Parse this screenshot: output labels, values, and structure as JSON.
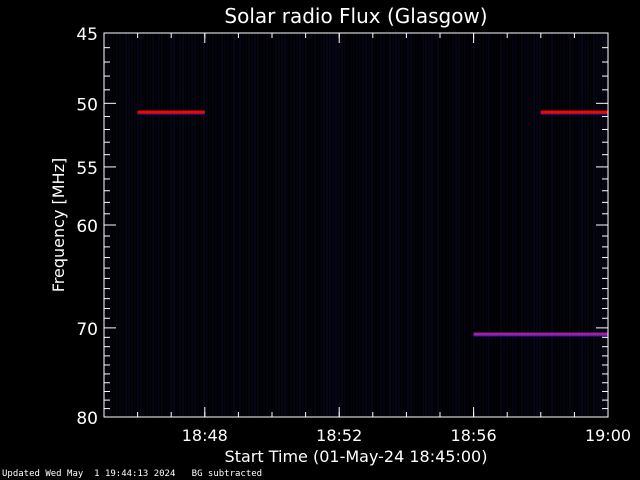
{
  "chart_data": {
    "type": "heatmap",
    "title": "Solar radio Flux (Glasgow)",
    "xlabel": "Start Time (01-May-24 18:45:00)",
    "ylabel": "Frequency [MHz]",
    "x_unit": "minutes",
    "xlim": [
      "18:45",
      "19:00"
    ],
    "x_ticks": [
      "18:48",
      "18:52",
      "18:56",
      "19:00"
    ],
    "ylim": [
      45,
      80
    ],
    "y_scale": "log",
    "y_ticks": [
      45,
      50,
      55,
      60,
      70,
      80
    ],
    "features": [
      {
        "freq": 50.7,
        "start": "18:46",
        "end": "18:48",
        "color": "#ff0000"
      },
      {
        "freq": 50.7,
        "start": "18:58",
        "end": "19:00",
        "color": "#ff0000"
      },
      {
        "freq": 70.7,
        "start": "18:56",
        "end": "19:00",
        "color": "#a020a0"
      }
    ],
    "colors": {
      "background": "#000000",
      "axes": "#ffffff",
      "noise": "#0a0a2a"
    }
  },
  "footer": {
    "updated": "Updated Wed May  1 19:44:13 2024",
    "note": "BG subtracted"
  }
}
